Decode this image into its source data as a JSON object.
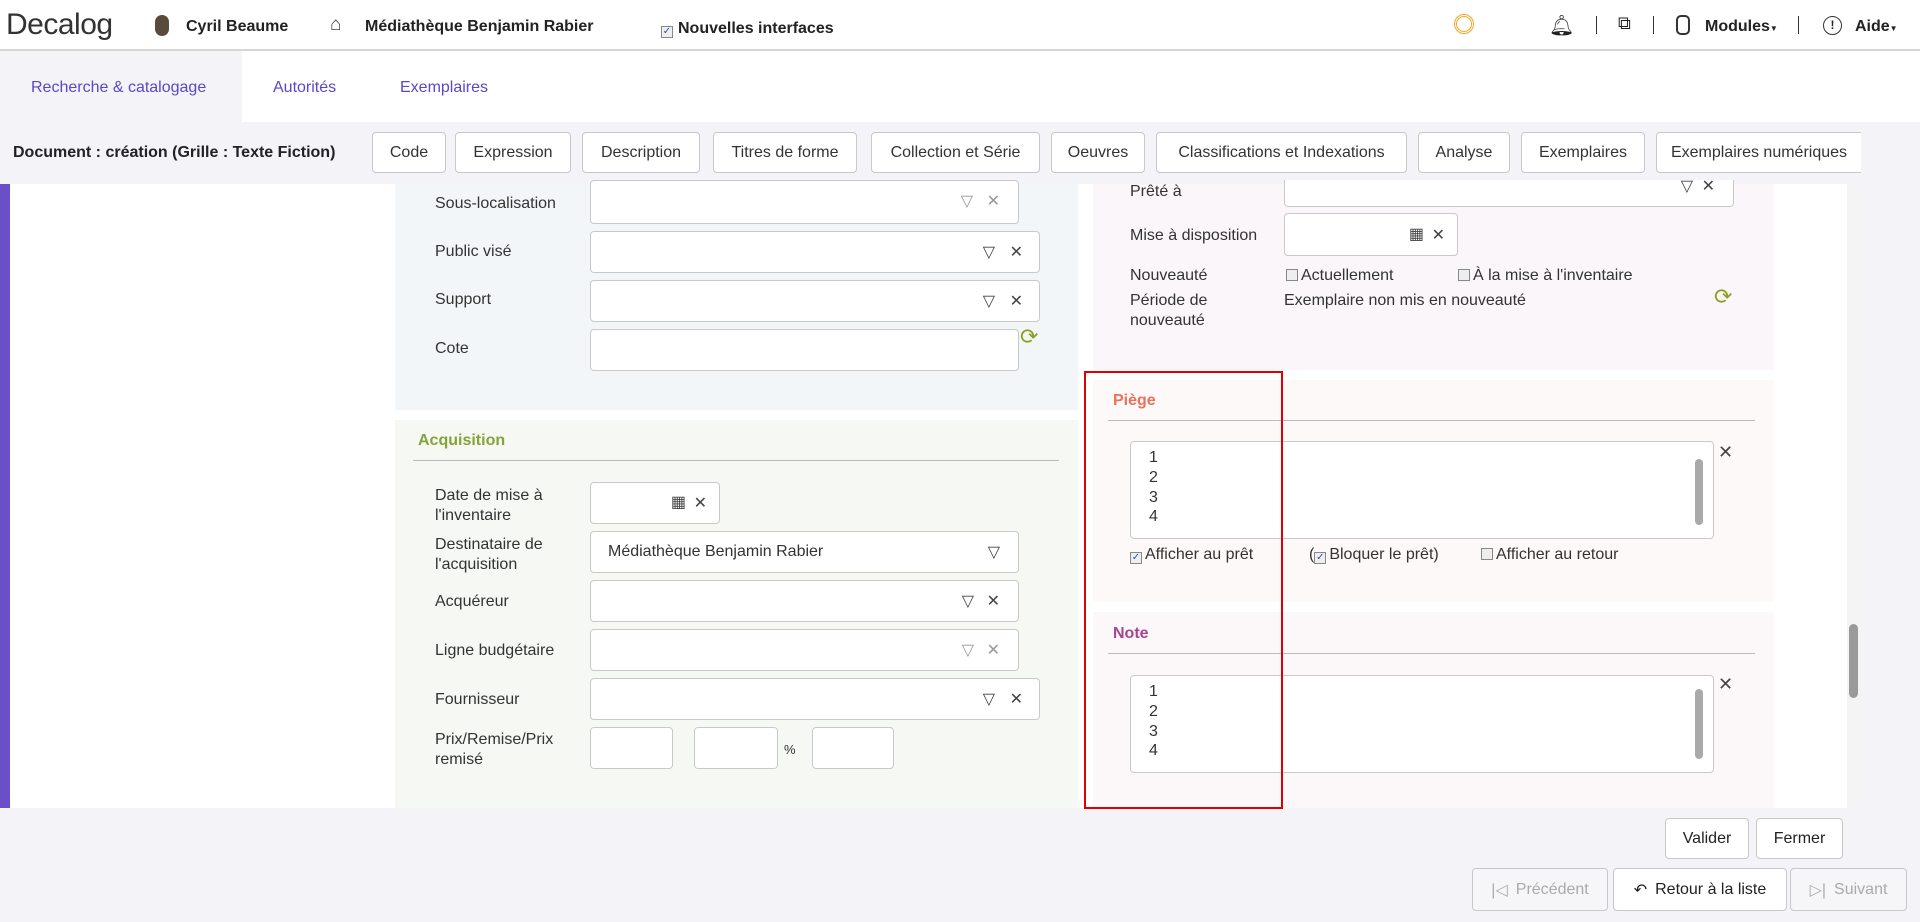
{
  "header": {
    "logo": "Decalog",
    "user": "Cyril Beaume",
    "library": "Médiathèque Benjamin Rabier",
    "new_interfaces_label": "Nouvelles interfaces",
    "new_interfaces_checked": true,
    "modules_label": "Modules",
    "help_label": "Aide",
    "accent_color": "#f5a623"
  },
  "tabs": [
    {
      "label": "Recherche & catalogage",
      "active": true
    },
    {
      "label": "Autorités"
    },
    {
      "label": "Exemplaires"
    }
  ],
  "toolbar": {
    "title": "Document : création (Grille : Texte Fiction)",
    "buttons": [
      "Code",
      "Expression",
      "Description",
      "Titres de forme",
      "Collection et Série",
      "Oeuvres",
      "Classifications et Indexations",
      "Analyse",
      "Exemplaires",
      "Exemplaires numériques"
    ]
  },
  "location": {
    "fields": {
      "sub_location": "Sous-localisation",
      "audience": "Public visé",
      "support": "Support",
      "shelfmark": "Cote"
    }
  },
  "acquisition": {
    "title": "Acquisition",
    "inventory_date_label": "Date de mise à l'inventaire",
    "recipient_label": "Destinataire de l'acquisition",
    "recipient_value": "Médiathèque Benjamin Rabier",
    "buyer_label": "Acquéreur",
    "budget_label": "Ligne budgétaire",
    "supplier_label": "Fournisseur",
    "price_label": "Prix/Remise/Prix remisé",
    "percent": "%"
  },
  "loan": {
    "lent_to_label": "Prêté à",
    "availability_label": "Mise à disposition",
    "novelty_label": "Nouveauté",
    "currently_label": "Actuellement",
    "at_inventory_label": "À la mise à l'inventaire",
    "novelty_period_label": "Période de nouveauté",
    "novelty_period_value": "Exemplaire non mis en nouveauté"
  },
  "trap": {
    "title": "Piège",
    "lines": [
      "1",
      "2",
      "3",
      "4"
    ],
    "show_on_loan": "Afficher au prêt",
    "show_on_loan_checked": true,
    "block_loan": "Bloquer le prêt",
    "block_loan_checked": true,
    "show_on_return": "Afficher au retour",
    "show_on_return_checked": false,
    "title_color": "#e8735a"
  },
  "note": {
    "title": "Note",
    "lines": [
      "1",
      "2",
      "3",
      "4"
    ],
    "title_color": "#a8458f"
  },
  "actions": {
    "validate": "Valider",
    "close": "Fermer",
    "previous": "Précédent",
    "back_to_list": "Retour à la liste",
    "next": "Suivant"
  }
}
